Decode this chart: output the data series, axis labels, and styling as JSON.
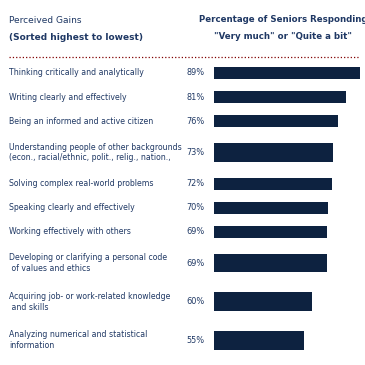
{
  "categories": [
    "Thinking critically and analytically",
    "Writing clearly and effectively",
    "Being an informed and active citizen",
    "Understanding people of other backgrounds\n(econ., racial/ethnic, polit., relig., nation.,",
    "Solving complex real-world problems",
    "Speaking clearly and effectively",
    "Working effectively with others",
    "Developing or clarifying a personal code\n of values and ethics",
    "Acquiring job- or work-related knowledge\n and skills",
    "Analyzing numerical and statistical\ninformation"
  ],
  "values": [
    89,
    81,
    76,
    73,
    72,
    70,
    69,
    69,
    60,
    55
  ],
  "bar_color": "#0d2240",
  "text_color": "#1f3864",
  "header_color": "#1f3864",
  "background_color": "#ffffff",
  "dotted_line_color": "#800000",
  "header_left_line1": "Perceived Gains",
  "header_left_line2": "(Sorted highest to lowest)",
  "header_right_line1": "Percentage of Seniors Responding",
  "header_right_line2": "\"Very much\" or \"Quite a bit\"",
  "bar_max_val": 89,
  "fig_width": 3.65,
  "fig_height": 3.65,
  "fig_dpi": 100
}
